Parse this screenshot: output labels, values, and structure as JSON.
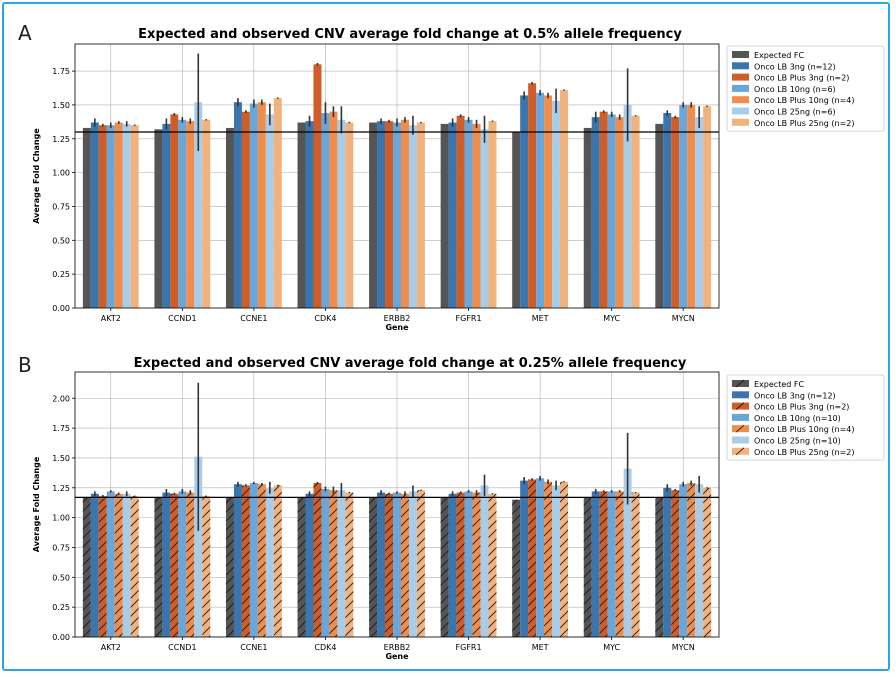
{
  "panel_letters": [
    "A",
    "B"
  ],
  "chart_data": [
    {
      "type": "bar",
      "title": "Expected and observed CNV average fold change at 0.5% allele frequency",
      "xlabel": "Gene",
      "ylabel": "Average Fold Change",
      "ylim": [
        0,
        1.95
      ],
      "yticks": [
        "0.00",
        "0.25",
        "0.50",
        "0.75",
        "1.00",
        "1.25",
        "1.50",
        "1.75"
      ],
      "grid": true,
      "legend_position": "right",
      "hatched": false,
      "reference_line": 1.3,
      "categories": [
        "AKT2",
        "CCND1",
        "CCNE1",
        "CDK4",
        "ERBB2",
        "FGFR1",
        "MET",
        "MYC",
        "MYCN"
      ],
      "series": [
        {
          "name": "Expected FC",
          "color": "#555555",
          "values": [
            1.33,
            1.32,
            1.33,
            1.37,
            1.37,
            1.36,
            1.3,
            1.33,
            1.36
          ],
          "errors": [
            0,
            0,
            0,
            0,
            0,
            0,
            0,
            0,
            0
          ]
        },
        {
          "name": "Onco LB 3ng (n=12)",
          "color": "#3a75ad",
          "values": [
            1.37,
            1.36,
            1.52,
            1.38,
            1.38,
            1.37,
            1.57,
            1.41,
            1.44
          ],
          "errors": [
            0.03,
            0.04,
            0.03,
            0.04,
            0.02,
            0.03,
            0.03,
            0.04,
            0.02
          ]
        },
        {
          "name": "Onco LB Plus 3ng (n=2)",
          "color": "#d05d28",
          "values": [
            1.35,
            1.43,
            1.45,
            1.8,
            1.38,
            1.42,
            1.66,
            1.45,
            1.41
          ],
          "errors": [
            0.01,
            0.01,
            0.01,
            0.01,
            0.01,
            0.01,
            0.01,
            0.01,
            0.01
          ]
        },
        {
          "name": "Onco LB 10ng (n=6)",
          "color": "#6aa7d8",
          "values": [
            1.35,
            1.39,
            1.51,
            1.44,
            1.37,
            1.39,
            1.59,
            1.43,
            1.5
          ],
          "errors": [
            0.02,
            0.02,
            0.03,
            0.08,
            0.03,
            0.02,
            0.02,
            0.02,
            0.02
          ]
        },
        {
          "name": "Onco LB Plus 10ng (n=4)",
          "color": "#ef8e4c",
          "values": [
            1.37,
            1.38,
            1.52,
            1.45,
            1.39,
            1.36,
            1.57,
            1.41,
            1.5
          ],
          "errors": [
            0.01,
            0.02,
            0.02,
            0.04,
            0.02,
            0.03,
            0.02,
            0.02,
            0.02
          ]
        },
        {
          "name": "Onco LB 25ng (n=6)",
          "color": "#a9cde8",
          "values": [
            1.36,
            1.52,
            1.43,
            1.39,
            1.35,
            1.32,
            1.53,
            1.5,
            1.41
          ],
          "errors": [
            0.02,
            0.36,
            0.08,
            0.1,
            0.07,
            0.1,
            0.09,
            0.27,
            0.08
          ]
        },
        {
          "name": "Onco LB Plus 25ng (n=2)",
          "color": "#f1b27d",
          "values": [
            1.35,
            1.39,
            1.55,
            1.37,
            1.37,
            1.38,
            1.61,
            1.42,
            1.49
          ],
          "errors": [
            0.005,
            0.005,
            0.005,
            0.005,
            0.005,
            0.005,
            0.005,
            0.005,
            0.005
          ]
        }
      ]
    },
    {
      "type": "bar",
      "title": "Expected and observed CNV average fold change at 0.25% allele frequency",
      "xlabel": "Gene",
      "ylabel": "Average Fold Change",
      "ylim": [
        0,
        2.22
      ],
      "yticks": [
        "0.00",
        "0.25",
        "0.50",
        "0.75",
        "1.00",
        "1.25",
        "1.50",
        "1.75",
        "2.00"
      ],
      "grid": true,
      "legend_position": "right",
      "hatched": true,
      "reference_line": 1.17,
      "categories": [
        "AKT2",
        "CCND1",
        "CCNE1",
        "CDK4",
        "ERBB2",
        "FGFR1",
        "MET",
        "MYC",
        "MYCN"
      ],
      "series": [
        {
          "name": "Expected FC",
          "color": "#555555",
          "values": [
            1.17,
            1.17,
            1.17,
            1.17,
            1.17,
            1.17,
            1.15,
            1.17,
            1.17
          ],
          "errors": [
            0,
            0,
            0,
            0,
            0,
            0,
            0,
            0,
            0
          ]
        },
        {
          "name": "Onco LB 3ng (n=12)",
          "color": "#3a75ad",
          "values": [
            1.2,
            1.21,
            1.28,
            1.2,
            1.21,
            1.2,
            1.31,
            1.22,
            1.25
          ],
          "errors": [
            0.02,
            0.03,
            0.02,
            0.02,
            0.02,
            0.02,
            0.03,
            0.02,
            0.03
          ]
        },
        {
          "name": "Onco LB Plus 3ng (n=2)",
          "color": "#d05d28",
          "values": [
            1.18,
            1.2,
            1.27,
            1.29,
            1.2,
            1.21,
            1.32,
            1.22,
            1.23
          ],
          "errors": [
            0.01,
            0.01,
            0.01,
            0.01,
            0.01,
            0.01,
            0.01,
            0.01,
            0.01
          ]
        },
        {
          "name": "Onco LB 10ng (n=10)",
          "color": "#6aa7d8",
          "values": [
            1.22,
            1.22,
            1.29,
            1.24,
            1.21,
            1.22,
            1.33,
            1.22,
            1.28
          ],
          "errors": [
            0.01,
            0.02,
            0.01,
            0.02,
            0.01,
            0.01,
            0.02,
            0.01,
            0.02
          ]
        },
        {
          "name": "Onco LB Plus 10ng (n=4)",
          "color": "#ef8e4c",
          "values": [
            1.2,
            1.21,
            1.28,
            1.23,
            1.2,
            1.21,
            1.3,
            1.22,
            1.29
          ],
          "errors": [
            0.01,
            0.02,
            0.01,
            0.03,
            0.02,
            0.02,
            0.02,
            0.01,
            0.02
          ]
        },
        {
          "name": "Onco LB 25ng (n=10)",
          "color": "#a9cde8",
          "values": [
            1.2,
            1.51,
            1.25,
            1.23,
            1.22,
            1.27,
            1.27,
            1.41,
            1.28
          ],
          "errors": [
            0.02,
            0.62,
            0.05,
            0.06,
            0.05,
            0.09,
            0.04,
            0.3,
            0.07
          ]
        },
        {
          "name": "Onco LB Plus 25ng (n=2)",
          "color": "#f1b27d",
          "values": [
            1.18,
            1.18,
            1.27,
            1.21,
            1.23,
            1.2,
            1.3,
            1.21,
            1.25
          ],
          "errors": [
            0.005,
            0.005,
            0.005,
            0.005,
            0.005,
            0.005,
            0.005,
            0.005,
            0.005
          ]
        }
      ]
    }
  ]
}
